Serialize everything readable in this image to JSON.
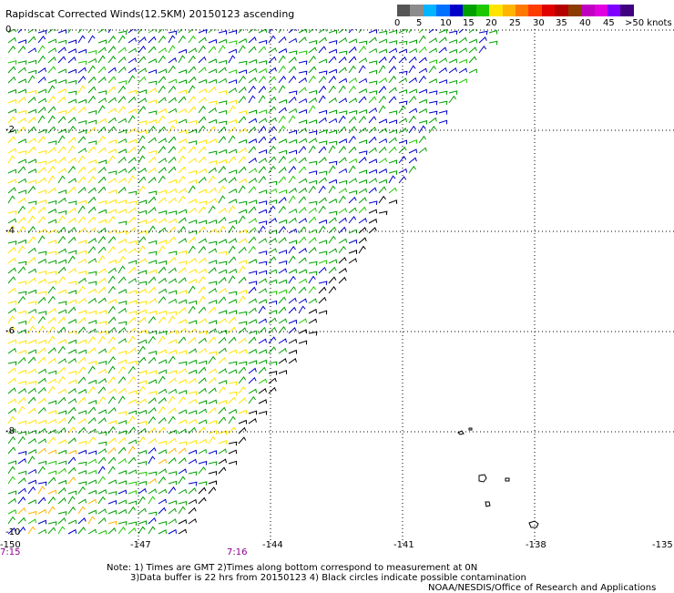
{
  "title": "Rapidscat Corrected Winds(12.5KM) 20150123 ascending",
  "legend": {
    "colors": [
      "#555555",
      "#8c8c8c",
      "#00b4ff",
      "#0070ff",
      "#0000c8",
      "#00a000",
      "#1ec800",
      "#ffe400",
      "#ffb400",
      "#ff7800",
      "#ff3c00",
      "#e00000",
      "#b40000",
      "#8c3c00",
      "#c000c0",
      "#e000e0",
      "#8000ff",
      "#400080"
    ],
    "labels": [
      "0",
      "5",
      "10",
      "15",
      "20",
      "25",
      "30",
      "35",
      "40",
      "45",
      ">50 knots"
    ]
  },
  "lat_labels": [
    "0",
    "-2",
    "-4",
    "-6",
    "-8",
    "-10"
  ],
  "lon_labels": [
    "-150",
    "-147",
    "-144",
    "-141",
    "-138",
    "-135"
  ],
  "times": [
    "7:15",
    "7:16"
  ],
  "notes": {
    "line1": "Note: 1) Times are GMT 2)Times along bottom correspond to measurement at 0N",
    "line2": "3)Data buffer is 22 hrs from 20150123 4) Black circles indicate possible contamination",
    "line3": "NOAA/NESDIS/Office of Research and Applications"
  }
}
